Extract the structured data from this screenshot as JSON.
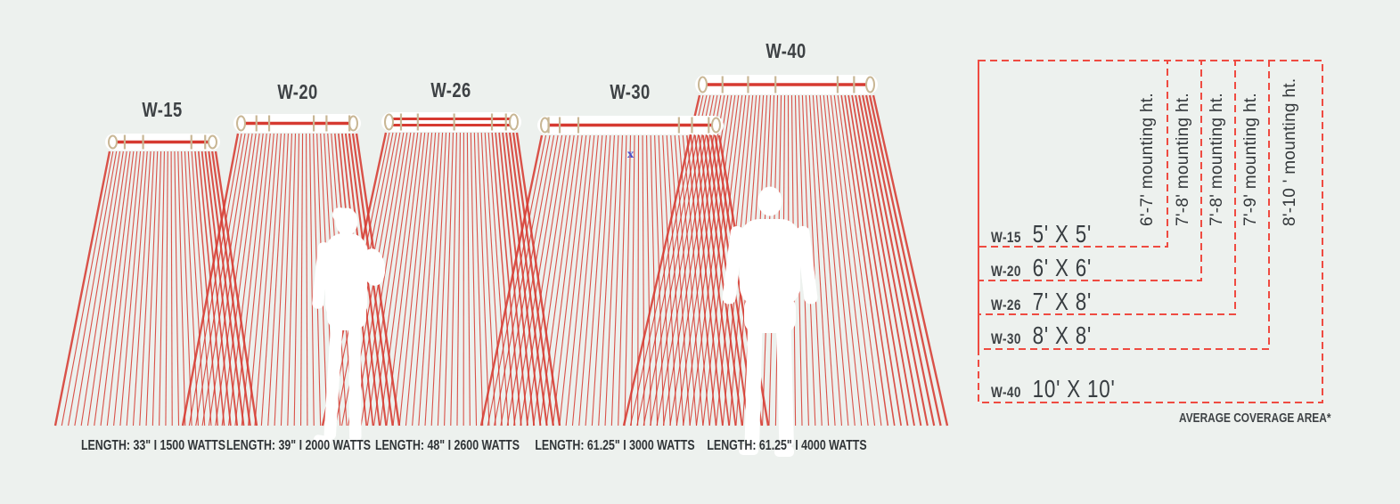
{
  "colors": {
    "background": "#edf1ee",
    "ray_red": "#d63a31",
    "dashed_red": "#ef4b41",
    "bar_tan": "#c9b795",
    "bar_white": "#ffffff",
    "text_dark": "#3e4245",
    "silhouette": "#ffffff",
    "marker_blue": "#4a4fc9"
  },
  "units": [
    {
      "model": "W-15",
      "spec": "LENGTH: 33\" I 1500 WATTS",
      "coverage": "5' X 5'",
      "mounting": "6'-7' mounting ht."
    },
    {
      "model": "W-20",
      "spec": "LENGTH: 39\" I 2000 WATTS",
      "coverage": "6' X 6'",
      "mounting": "7'-8' mounting ht."
    },
    {
      "model": "W-26",
      "spec": "LENGTH: 48\" I 2600 WATTS",
      "coverage": "7' X 8'",
      "mounting": "7'-8' mounting ht."
    },
    {
      "model": "W-30",
      "spec": "LENGTH: 61.25\" I 3000 WATTS",
      "coverage": "8' X 8'",
      "mounting": "7'-9' mounting ht."
    },
    {
      "model": "W-40",
      "spec": "LENGTH: 61.25\" I 4000 WATTS",
      "coverage": "10' X 10'",
      "mounting": "8'-10 ' mounting ht."
    }
  ],
  "table": {
    "caption": "AVERAGE COVERAGE AREA*"
  },
  "marker": {
    "glyph": "x"
  }
}
